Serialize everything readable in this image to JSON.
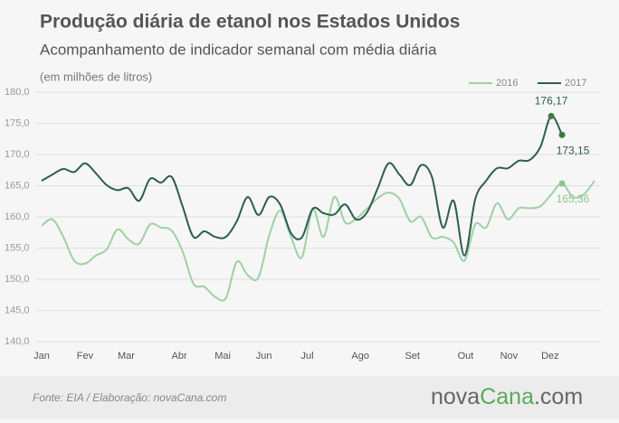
{
  "chart_data": {
    "type": "line",
    "title": "Produção diária de etanol nos Estados Unidos",
    "subtitle": "Acompanhamento de indicador semanal com média diária",
    "unit_note": "(em milhões de litros)",
    "source": "Fonte: EIA / Elaboração: novaCana.com",
    "logo": [
      "nova",
      "Cana",
      ".com"
    ],
    "x": [
      1,
      2,
      3,
      4,
      5,
      6,
      7,
      8,
      9,
      10,
      11,
      12,
      13,
      14,
      15,
      16,
      17,
      18,
      19,
      20,
      21,
      22,
      23,
      24,
      25,
      26,
      27,
      28,
      29,
      30,
      31,
      32,
      33,
      34,
      35,
      36,
      37,
      38,
      39,
      40,
      41,
      42,
      43,
      44,
      45,
      46,
      47,
      48,
      49,
      50,
      51,
      52
    ],
    "xlim": [
      1,
      52
    ],
    "xticks": [
      {
        "value": 1,
        "label": "Jan"
      },
      {
        "value": 5,
        "label": "Fev"
      },
      {
        "value": 8.8,
        "label": "Mar"
      },
      {
        "value": 13.7,
        "label": "Abr"
      },
      {
        "value": 17.7,
        "label": "Mai"
      },
      {
        "value": 21.5,
        "label": "Jun"
      },
      {
        "value": 25.5,
        "label": "Jul"
      },
      {
        "value": 30.4,
        "label": "Ago"
      },
      {
        "value": 35.2,
        "label": "Set"
      },
      {
        "value": 40.1,
        "label": "Out"
      },
      {
        "value": 44.1,
        "label": "Nov"
      },
      {
        "value": 47.9,
        "label": "Dez"
      }
    ],
    "ylim": [
      140,
      180
    ],
    "yticks": [
      {
        "value": 140,
        "label": "140,0"
      },
      {
        "value": 145,
        "label": "145,0"
      },
      {
        "value": 150,
        "label": "150,0"
      },
      {
        "value": 155,
        "label": "155,0"
      },
      {
        "value": 160,
        "label": "160,0"
      },
      {
        "value": 165,
        "label": "165,0"
      },
      {
        "value": 170,
        "label": "170,0"
      },
      {
        "value": 175,
        "label": "175,0"
      },
      {
        "value": 180,
        "label": "180,0"
      }
    ],
    "grid": true,
    "series": [
      {
        "name": "2016",
        "color": "#9fd0a2",
        "point_color": "#8cc58f",
        "values": [
          158.6,
          159.6,
          156.8,
          153.0,
          152.5,
          153.8,
          154.8,
          158.0,
          156.4,
          155.7,
          158.8,
          158.3,
          157.8,
          154.5,
          149.3,
          148.8,
          147.2,
          147.0,
          152.8,
          150.7,
          150.3,
          157.1,
          161.0,
          156.8,
          153.5,
          161.2,
          156.8,
          163.2,
          159.1,
          159.7,
          161.3,
          163.0,
          163.9,
          162.9,
          159.3,
          160.0,
          156.7,
          156.8,
          155.9,
          153.0,
          158.8,
          158.3,
          162.2,
          159.6,
          161.4,
          161.4,
          161.7,
          163.6,
          165.36,
          163.2,
          163.6,
          165.8
        ],
        "points": [
          {
            "x": 49,
            "value": 165.36,
            "label": "165,36"
          }
        ]
      },
      {
        "name": "2017",
        "color": "#2d5e50",
        "point_color": "#3f7a3a",
        "values": [
          165.8,
          166.8,
          167.7,
          167.2,
          168.6,
          167.0,
          165.1,
          164.3,
          164.6,
          162.6,
          166.1,
          165.5,
          166.4,
          161.7,
          156.8,
          157.7,
          156.8,
          156.8,
          159.3,
          163.2,
          160.3,
          163.2,
          162.0,
          157.4,
          156.7,
          161.3,
          160.6,
          160.4,
          162.0,
          159.6,
          160.7,
          164.6,
          168.6,
          166.8,
          165.1,
          168.3,
          166.4,
          158.3,
          162.6,
          153.8,
          162.9,
          165.8,
          167.8,
          167.8,
          169.0,
          169.1,
          171.2,
          176.17,
          173.15,
          null,
          null,
          null
        ],
        "points": [
          {
            "x": 48,
            "value": 176.17,
            "label": "176,17"
          },
          {
            "x": 49,
            "value": 173.15,
            "label": "173,15"
          }
        ]
      }
    ]
  }
}
